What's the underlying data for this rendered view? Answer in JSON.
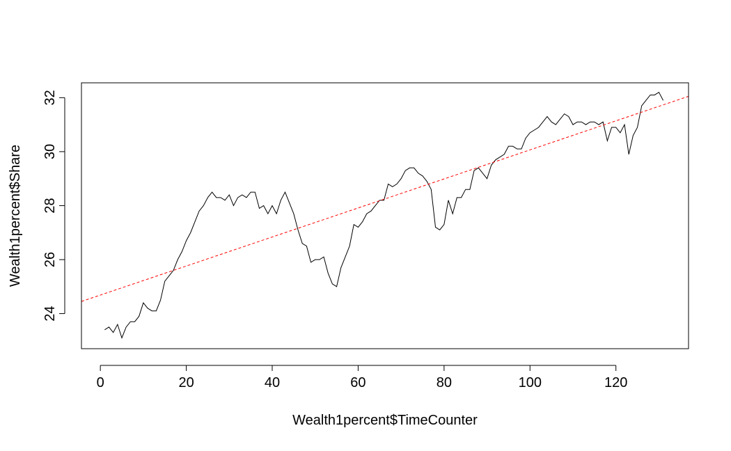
{
  "chart_data": {
    "type": "line",
    "title": "",
    "xlabel": "Wealth1percent$TimeCounter",
    "ylabel": "Wealth1percent$Share",
    "xlim": [
      -4.4,
      136.9
    ],
    "ylim": [
      22.7,
      32.55
    ],
    "x_ticks": [
      0,
      20,
      40,
      60,
      80,
      100,
      120
    ],
    "y_ticks": [
      24,
      26,
      28,
      30,
      32
    ],
    "grid": false,
    "legend": "none",
    "series": [
      {
        "color": "#000000",
        "line_style": "solid",
        "x": [
          1,
          2,
          3,
          4,
          5,
          6,
          7,
          8,
          9,
          10,
          11,
          12,
          13,
          14,
          15,
          16,
          17,
          18,
          19,
          20,
          21,
          22,
          23,
          24,
          25,
          26,
          27,
          28,
          29,
          30,
          31,
          32,
          33,
          34,
          35,
          36,
          37,
          38,
          39,
          40,
          41,
          42,
          43,
          44,
          45,
          46,
          47,
          48,
          49,
          50,
          51,
          52,
          53,
          54,
          55,
          56,
          57,
          58,
          59,
          60,
          61,
          62,
          63,
          64,
          65,
          66,
          67,
          68,
          69,
          70,
          71,
          72,
          73,
          74,
          75,
          76,
          77,
          78,
          79,
          80,
          81,
          82,
          83,
          84,
          85,
          86,
          87,
          88,
          89,
          90,
          91,
          92,
          93,
          94,
          95,
          96,
          97,
          98,
          99,
          100,
          101,
          102,
          103,
          104,
          105,
          106,
          107,
          108,
          109,
          110,
          111,
          112,
          113,
          114,
          115,
          116,
          117,
          118,
          119,
          120,
          121,
          122,
          123,
          124,
          125,
          126,
          127,
          128,
          129,
          130,
          131
        ],
        "y": [
          23.4,
          23.5,
          23.3,
          23.6,
          23.1,
          23.5,
          23.7,
          23.7,
          23.9,
          24.4,
          24.2,
          24.1,
          24.1,
          24.5,
          25.2,
          25.4,
          25.6,
          26.0,
          26.3,
          26.7,
          27.0,
          27.4,
          27.8,
          28.0,
          28.3,
          28.5,
          28.3,
          28.3,
          28.2,
          28.4,
          28.0,
          28.3,
          28.4,
          28.3,
          28.5,
          28.5,
          27.9,
          28.0,
          27.7,
          28.0,
          27.7,
          28.2,
          28.5,
          28.1,
          27.7,
          27.1,
          26.6,
          26.5,
          25.9,
          26.0,
          26.0,
          26.1,
          25.5,
          25.1,
          25.0,
          25.7,
          26.1,
          26.5,
          27.3,
          27.2,
          27.4,
          27.7,
          27.8,
          28.0,
          28.2,
          28.2,
          28.8,
          28.7,
          28.8,
          29.0,
          29.3,
          29.4,
          29.4,
          29.2,
          29.1,
          28.9,
          28.6,
          27.2,
          27.1,
          27.3,
          28.2,
          27.7,
          28.3,
          28.3,
          28.6,
          28.6,
          29.3,
          29.4,
          29.2,
          29.0,
          29.5,
          29.7,
          29.8,
          29.9,
          30.2,
          30.2,
          30.1,
          30.1,
          30.5,
          30.7,
          30.8,
          30.9,
          31.1,
          31.3,
          31.1,
          31.0,
          31.2,
          31.4,
          31.3,
          31.0,
          31.1,
          31.1,
          31.0,
          31.1,
          31.1,
          31.0,
          31.1,
          30.4,
          30.9,
          30.9,
          30.7,
          31.0,
          29.9,
          30.6,
          30.9,
          31.7,
          31.9,
          32.1,
          32.1,
          32.2,
          31.9
        ]
      },
      {
        "color": "#ff0000",
        "line_style": "dashed",
        "x": [
          -4.4,
          136.9
        ],
        "y": [
          24.45,
          32.05
        ]
      }
    ]
  }
}
